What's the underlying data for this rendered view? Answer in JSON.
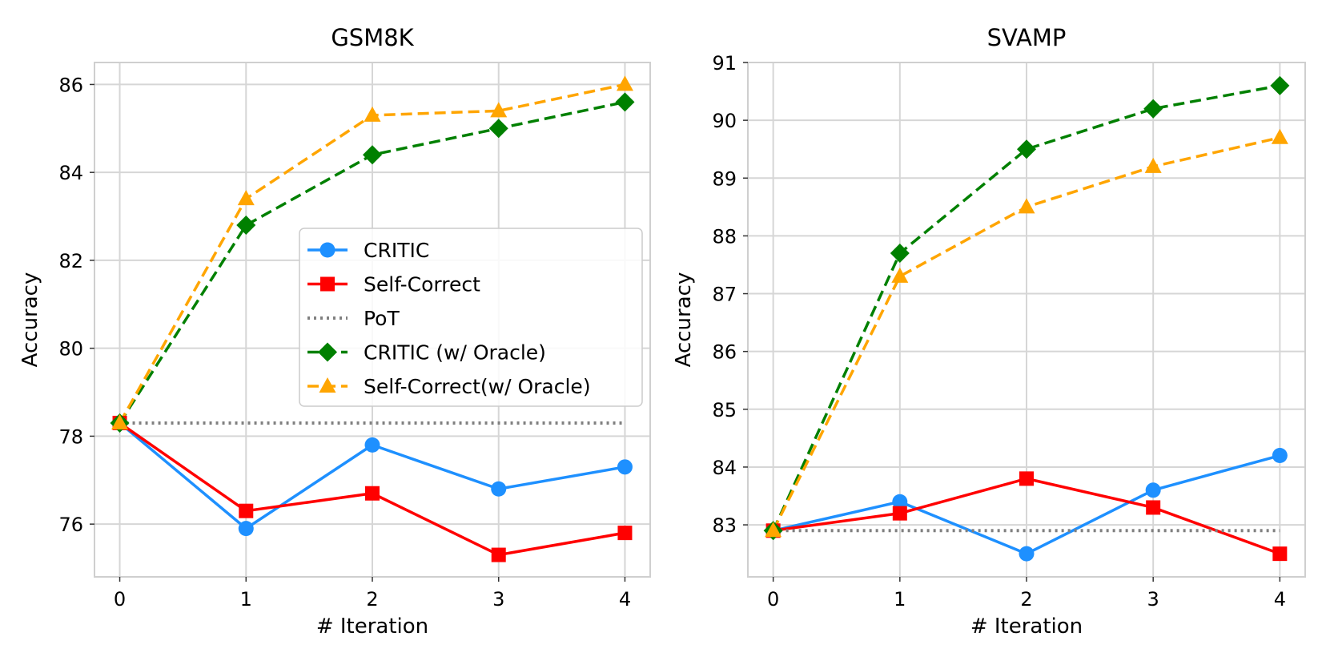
{
  "chart_data": [
    {
      "type": "line",
      "title": "GSM8K",
      "xlabel": "# Iteration",
      "ylabel": "Accuracy",
      "x": [
        0,
        1,
        2,
        3,
        4
      ],
      "xlim": [
        -0.2,
        4.2
      ],
      "ylim": [
        74.8,
        86.5
      ],
      "yticks": [
        76,
        78,
        80,
        82,
        84,
        86
      ],
      "xticks": [
        0,
        1,
        2,
        3,
        4
      ],
      "grid": true,
      "legend": "center-right",
      "series": [
        {
          "name": "CRITIC",
          "values": [
            78.3,
            75.9,
            77.8,
            76.8,
            77.3
          ],
          "color": "#1e90ff",
          "marker": "circle",
          "dash": "solid"
        },
        {
          "name": "Self-Correct",
          "values": [
            78.3,
            76.3,
            76.7,
            75.3,
            75.8
          ],
          "color": "#ff0000",
          "marker": "square",
          "dash": "solid"
        },
        {
          "name": "PoT",
          "values": [
            78.3,
            78.3,
            78.3,
            78.3,
            78.3
          ],
          "color": "#808080",
          "marker": "none",
          "dash": "dotted"
        },
        {
          "name": "CRITIC (w/ Oracle)",
          "values": [
            78.3,
            82.8,
            84.4,
            85.0,
            85.6
          ],
          "color": "#008000",
          "marker": "diamond",
          "dash": "dashed"
        },
        {
          "name": "Self-Correct(w/ Oracle)",
          "values": [
            78.3,
            83.4,
            85.3,
            85.4,
            86.0
          ],
          "color": "#ffa500",
          "marker": "triangle",
          "dash": "dashed"
        }
      ]
    },
    {
      "type": "line",
      "title": "SVAMP",
      "xlabel": "# Iteration",
      "ylabel": "Accuracy",
      "x": [
        0,
        1,
        2,
        3,
        4
      ],
      "xlim": [
        -0.2,
        4.2
      ],
      "ylim": [
        82.1,
        91.0
      ],
      "yticks": [
        83,
        84,
        85,
        86,
        87,
        88,
        89,
        90,
        91
      ],
      "xticks": [
        0,
        1,
        2,
        3,
        4
      ],
      "grid": true,
      "legend": "none",
      "series": [
        {
          "name": "CRITIC",
          "values": [
            82.9,
            83.4,
            82.5,
            83.6,
            84.2
          ],
          "color": "#1e90ff",
          "marker": "circle",
          "dash": "solid"
        },
        {
          "name": "Self-Correct",
          "values": [
            82.9,
            83.2,
            83.8,
            83.3,
            82.5
          ],
          "color": "#ff0000",
          "marker": "square",
          "dash": "solid"
        },
        {
          "name": "PoT",
          "values": [
            82.9,
            82.9,
            82.9,
            82.9,
            82.9
          ],
          "color": "#808080",
          "marker": "none",
          "dash": "dotted"
        },
        {
          "name": "CRITIC (w/ Oracle)",
          "values": [
            82.9,
            87.7,
            89.5,
            90.2,
            90.6
          ],
          "color": "#008000",
          "marker": "diamond",
          "dash": "dashed"
        },
        {
          "name": "Self-Correct(w/ Oracle)",
          "values": [
            82.9,
            87.3,
            88.5,
            89.2,
            89.7
          ],
          "color": "#ffa500",
          "marker": "triangle",
          "dash": "dashed"
        }
      ]
    }
  ]
}
